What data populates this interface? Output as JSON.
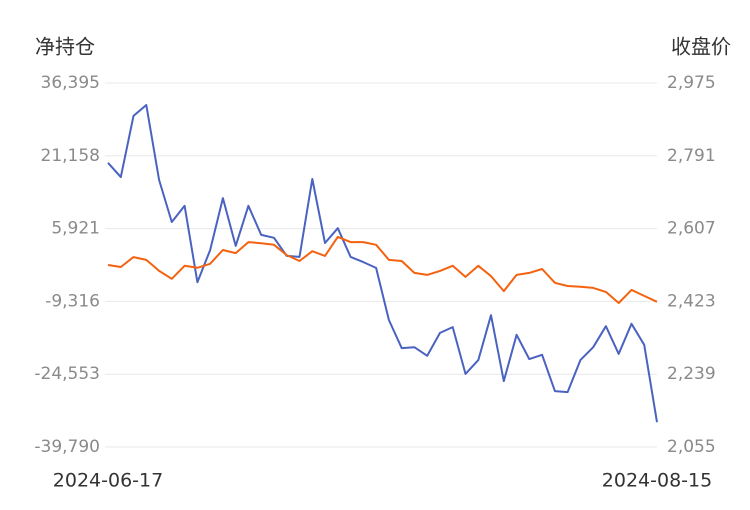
{
  "chart_data": {
    "type": "line",
    "y_label": "净持仓",
    "y2_label": "收盘价",
    "categories": [
      "2024-06-17",
      null,
      null,
      null,
      null,
      null,
      null,
      null,
      null,
      null,
      null,
      null,
      null,
      null,
      null,
      null,
      null,
      null,
      null,
      null,
      null,
      null,
      null,
      null,
      null,
      null,
      null,
      null,
      null,
      null,
      null,
      null,
      null,
      null,
      null,
      null,
      null,
      null,
      null,
      null,
      null,
      null,
      null,
      "2024-08-15"
    ],
    "series": [
      {
        "color": "#4a62c0",
        "axis": "y",
        "values": [
          19700,
          16700,
          29500,
          31800,
          16100,
          7300,
          10700,
          -5300,
          1400,
          12300,
          2300,
          10700,
          4600,
          4000,
          200,
          0,
          16300,
          2900,
          6000,
          0,
          -1100,
          -2300,
          -13200,
          -19100,
          -18900,
          -20700,
          -15900,
          -14700,
          -24500,
          -21600,
          -12200,
          -26000,
          -16300,
          -21400,
          -20500,
          -28100,
          -28300,
          -21600,
          -18900,
          -14500,
          -20300,
          -14000,
          -18400,
          -34600
        ]
      },
      {
        "color": "#f5620f",
        "axis": "y2",
        "values": [
          2515,
          2510,
          2535,
          2528,
          2500,
          2480,
          2513,
          2508,
          2518,
          2553,
          2545,
          2573,
          2570,
          2566,
          2540,
          2525,
          2550,
          2538,
          2586,
          2573,
          2573,
          2566,
          2528,
          2525,
          2495,
          2490,
          2500,
          2513,
          2485,
          2513,
          2487,
          2449,
          2490,
          2495,
          2505,
          2470,
          2462,
          2460,
          2457,
          2447,
          2419,
          2452,
          2437,
          2422
        ]
      }
    ],
    "ylim": [
      -39790,
      36395
    ],
    "yticks": [
      {
        "value": -39790,
        "label": "-39,790"
      },
      {
        "value": -24553,
        "label": "-24,553"
      },
      {
        "value": -9316,
        "label": "-9,316"
      },
      {
        "value": 5921,
        "label": "5,921"
      },
      {
        "value": 21158,
        "label": "21,158"
      },
      {
        "value": 36395,
        "label": "36,395"
      }
    ],
    "y2lim": [
      2055,
      2975
    ],
    "y2ticks": [
      {
        "value": 2055,
        "label": "2,055"
      },
      {
        "value": 2239,
        "label": "2,239"
      },
      {
        "value": 2423,
        "label": "2,423"
      },
      {
        "value": 2607,
        "label": "2,607"
      },
      {
        "value": 2791,
        "label": "2,791"
      },
      {
        "value": 2975,
        "label": "2,975"
      }
    ],
    "grid": true
  }
}
